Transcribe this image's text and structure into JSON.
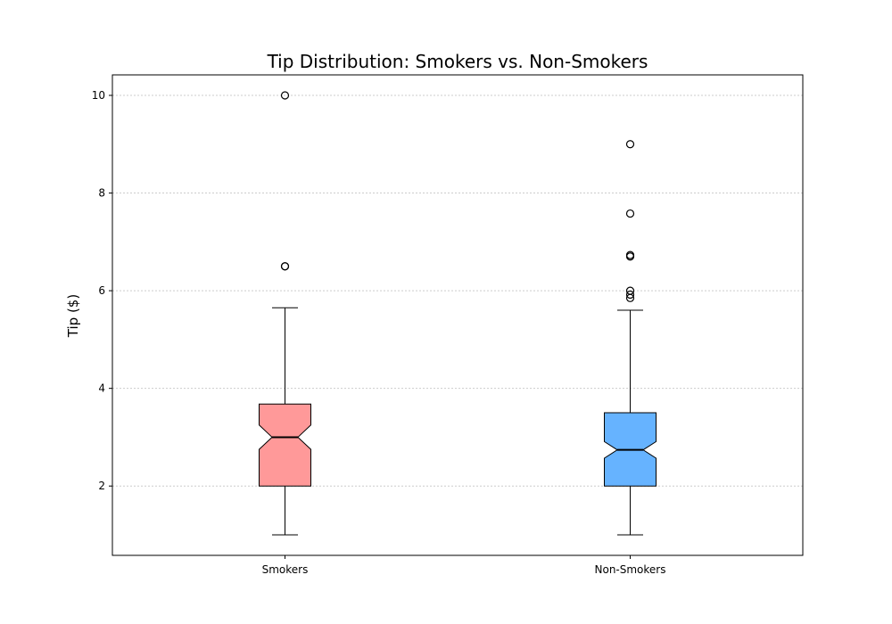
{
  "chart_data": {
    "type": "boxplot",
    "title": "Tip Distribution: Smokers vs. Non-Smokers",
    "xlabel": "",
    "ylabel": "Tip ($)",
    "ylim": [
      0.58,
      10.42
    ],
    "yticks": [
      "2",
      "4",
      "6",
      "8",
      "10"
    ],
    "ytick_values": [
      2,
      4,
      6,
      8,
      10
    ],
    "grid": "y-dotted",
    "notched": true,
    "categories": [
      "Smokers",
      "Non-Smokers"
    ],
    "boxes": [
      {
        "category": "Smokers",
        "color": "#ff9999",
        "whisker_low": 1.0,
        "q1": 2.0,
        "median": 3.0,
        "q3": 3.68,
        "whisker_high": 5.65,
        "notch_low": 2.75,
        "notch_high": 3.25,
        "outliers": [
          6.5,
          6.5,
          10.0
        ]
      },
      {
        "category": "Non-Smokers",
        "color": "#66b3ff",
        "whisker_low": 1.0,
        "q1": 2.0,
        "median": 2.74,
        "q3": 3.5,
        "whisker_high": 5.6,
        "notch_low": 2.57,
        "notch_high": 2.91,
        "outliers": [
          5.85,
          5.92,
          6.0,
          6.7,
          6.73,
          7.58,
          9.0
        ]
      }
    ]
  }
}
